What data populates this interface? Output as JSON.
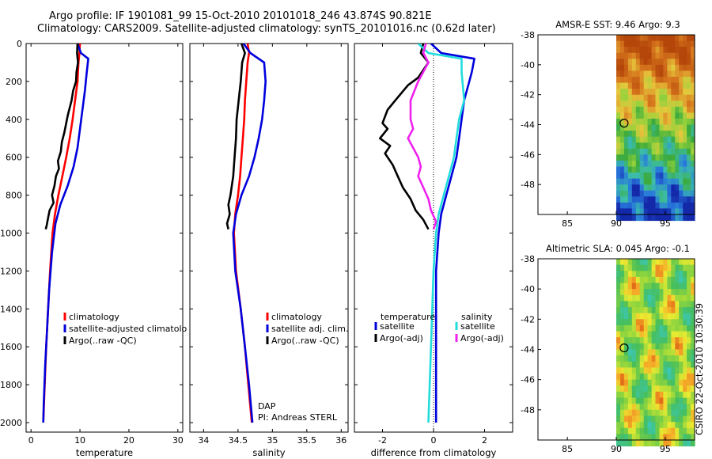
{
  "header": {
    "line1": "Argo profile: IF 1901081_99 15-Oct-2010 20101018_246 43.874S 90.821E",
    "line2": "Climatology: CARS2009. Satellite-adjusted climatology: synTS_20101016.nc (0.62d later)"
  },
  "colors": {
    "climatology": "#ff0000",
    "satellite": "#0000dd",
    "argo": "#000000",
    "sat_salinity": "#22dddd",
    "argo_salinity_adj": "#ee22ee"
  },
  "chart_data": [
    {
      "type": "line",
      "xlabel": "temperature",
      "xlim": [
        -1,
        31
      ],
      "ylim": [
        2050,
        0
      ],
      "xticks": [
        0,
        10,
        20,
        30
      ],
      "yticks": [
        0,
        200,
        400,
        600,
        800,
        1000,
        1200,
        1400,
        1600,
        1800,
        2000
      ],
      "legend": [
        "climatology",
        "satellite-adjusted climatology",
        "Argo(..raw -QC)"
      ],
      "series": [
        {
          "name": "climatology",
          "color": "#ff0000",
          "points": [
            [
              10,
              0
            ],
            [
              9.9,
              50
            ],
            [
              9.7,
              100
            ],
            [
              9.5,
              200
            ],
            [
              9,
              300
            ],
            [
              8.5,
              400
            ],
            [
              7.9,
              500
            ],
            [
              7.2,
              600
            ],
            [
              6.4,
              700
            ],
            [
              5.6,
              800
            ],
            [
              4.9,
              900
            ],
            [
              4.4,
              1000
            ],
            [
              3.9,
              1200
            ],
            [
              3.5,
              1400
            ],
            [
              3.1,
              1600
            ],
            [
              2.8,
              1800
            ],
            [
              2.5,
              2000
            ]
          ]
        },
        {
          "name": "satellite-adjusted climatology",
          "color": "#0000dd",
          "points": [
            [
              9.5,
              0
            ],
            [
              10.2,
              50
            ],
            [
              11.7,
              80
            ],
            [
              11.4,
              150
            ],
            [
              11,
              250
            ],
            [
              10.5,
              350
            ],
            [
              10,
              450
            ],
            [
              9.5,
              550
            ],
            [
              8.7,
              650
            ],
            [
              7.5,
              750
            ],
            [
              6,
              850
            ],
            [
              5,
              950
            ],
            [
              4.3,
              1100
            ],
            [
              3.7,
              1300
            ],
            [
              3.3,
              1500
            ],
            [
              2.9,
              1700
            ],
            [
              2.6,
              1900
            ],
            [
              2.5,
              2000
            ]
          ]
        },
        {
          "name": "Argo(..raw -QC)",
          "color": "#000000",
          "points": [
            [
              9.5,
              0
            ],
            [
              9.4,
              50
            ],
            [
              9.6,
              100
            ],
            [
              9.3,
              150
            ],
            [
              9.2,
              200
            ],
            [
              8.6,
              250
            ],
            [
              8.3,
              300
            ],
            [
              7.5,
              380
            ],
            [
              7.2,
              420
            ],
            [
              6.8,
              470
            ],
            [
              6.3,
              520
            ],
            [
              6.1,
              570
            ],
            [
              5.5,
              620
            ],
            [
              5.7,
              660
            ],
            [
              5.1,
              700
            ],
            [
              4.8,
              750
            ],
            [
              4.3,
              800
            ],
            [
              4.6,
              840
            ],
            [
              3.8,
              880
            ],
            [
              3.5,
              920
            ],
            [
              3.2,
              960
            ],
            [
              3.0,
              980
            ]
          ]
        }
      ]
    },
    {
      "type": "line",
      "xlabel": "salinity",
      "xlim": [
        33.8,
        36.1
      ],
      "ylim": [
        2050,
        0
      ],
      "xticks": [
        34,
        34.5,
        35,
        35.5,
        36
      ],
      "xticklabels": [
        "34",
        "34.5",
        "35",
        "35.5",
        "36"
      ],
      "legend": [
        "climatology",
        "satellite adj. clim.",
        "Argo(..raw -QC)"
      ],
      "annotation": [
        "DAP",
        "PI: Andreas STERL"
      ],
      "series": [
        {
          "name": "climatology",
          "color": "#ff0000",
          "points": [
            [
              34.64,
              0
            ],
            [
              34.66,
              50
            ],
            [
              34.64,
              100
            ],
            [
              34.62,
              200
            ],
            [
              34.6,
              300
            ],
            [
              34.59,
              400
            ],
            [
              34.57,
              500
            ],
            [
              34.55,
              600
            ],
            [
              34.53,
              700
            ],
            [
              34.5,
              800
            ],
            [
              34.46,
              900
            ],
            [
              34.44,
              1000
            ],
            [
              34.47,
              1200
            ],
            [
              34.54,
              1400
            ],
            [
              34.6,
              1600
            ],
            [
              34.65,
              1800
            ],
            [
              34.7,
              2000
            ]
          ]
        },
        {
          "name": "satellite adj. clim.",
          "color": "#0000dd",
          "points": [
            [
              34.58,
              0
            ],
            [
              34.68,
              50
            ],
            [
              34.88,
              100
            ],
            [
              34.9,
              200
            ],
            [
              34.88,
              300
            ],
            [
              34.85,
              400
            ],
            [
              34.8,
              500
            ],
            [
              34.74,
              600
            ],
            [
              34.66,
              700
            ],
            [
              34.55,
              800
            ],
            [
              34.47,
              900
            ],
            [
              34.43,
              1000
            ],
            [
              34.46,
              1200
            ],
            [
              34.54,
              1400
            ],
            [
              34.6,
              1600
            ],
            [
              34.66,
              1800
            ],
            [
              34.71,
              2000
            ]
          ]
        },
        {
          "name": "Argo(..raw -QC)",
          "color": "#000000",
          "points": [
            [
              34.55,
              0
            ],
            [
              34.6,
              50
            ],
            [
              34.56,
              100
            ],
            [
              34.54,
              200
            ],
            [
              34.51,
              300
            ],
            [
              34.48,
              400
            ],
            [
              34.47,
              500
            ],
            [
              34.45,
              600
            ],
            [
              34.43,
              700
            ],
            [
              34.39,
              800
            ],
            [
              34.36,
              850
            ],
            [
              34.38,
              900
            ],
            [
              34.34,
              950
            ],
            [
              34.36,
              980
            ]
          ]
        }
      ]
    },
    {
      "type": "line",
      "xlabel": "difference from climatology",
      "xlim": [
        -3.1,
        3.1
      ],
      "ylim": [
        2050,
        0
      ],
      "xticks": [
        -2,
        0,
        2
      ],
      "legend_temperature_heading": "temperature",
      "legend_salinity_heading": "salinity",
      "legend": [
        "satellite",
        "Argo(-adj)",
        "satellite",
        "Argo(-adj)"
      ],
      "series": [
        {
          "name": "temperature satellite",
          "color": "#0000dd",
          "points": [
            [
              -0.1,
              0
            ],
            [
              0.3,
              50
            ],
            [
              1.6,
              80
            ],
            [
              1.5,
              150
            ],
            [
              1.4,
              200
            ],
            [
              1.2,
              300
            ],
            [
              1.1,
              400
            ],
            [
              1,
              500
            ],
            [
              0.9,
              600
            ],
            [
              0.7,
              700
            ],
            [
              0.5,
              800
            ],
            [
              0.3,
              900
            ],
            [
              0.2,
              1000
            ],
            [
              0.1,
              1200
            ],
            [
              0.1,
              1600
            ],
            [
              0.1,
              2000
            ]
          ]
        },
        {
          "name": "temperature Argo(-adj)",
          "color": "#000000",
          "points": [
            [
              -0.4,
              0
            ],
            [
              -0.5,
              50
            ],
            [
              -0.2,
              100
            ],
            [
              -0.6,
              180
            ],
            [
              -1,
              220
            ],
            [
              -1.5,
              300
            ],
            [
              -1.8,
              350
            ],
            [
              -2,
              420
            ],
            [
              -1.8,
              450
            ],
            [
              -2.1,
              500
            ],
            [
              -1.7,
              540
            ],
            [
              -1.9,
              580
            ],
            [
              -1.6,
              640
            ],
            [
              -1.4,
              700
            ],
            [
              -1.2,
              760
            ],
            [
              -0.9,
              820
            ],
            [
              -0.7,
              880
            ],
            [
              -0.4,
              930
            ],
            [
              -0.2,
              980
            ]
          ]
        },
        {
          "name": "salinity satellite",
          "color": "#22dddd",
          "points": [
            [
              -0.6,
              0
            ],
            [
              -0.2,
              50
            ],
            [
              1.1,
              80
            ],
            [
              1.1,
              150
            ],
            [
              1.2,
              300
            ],
            [
              1,
              400
            ],
            [
              0.9,
              500
            ],
            [
              0.8,
              600
            ],
            [
              0.6,
              700
            ],
            [
              0.4,
              800
            ],
            [
              0.2,
              900
            ],
            [
              0.1,
              1000
            ],
            [
              0,
              1200
            ],
            [
              -0.1,
              1600
            ],
            [
              -0.2,
              2000
            ]
          ]
        },
        {
          "name": "salinity Argo(-adj)",
          "color": "#ee22ee",
          "points": [
            [
              -0.3,
              0
            ],
            [
              -0.4,
              50
            ],
            [
              -0.2,
              100
            ],
            [
              -0.6,
              200
            ],
            [
              -0.9,
              300
            ],
            [
              -0.9,
              400
            ],
            [
              -0.8,
              450
            ],
            [
              -1.0,
              500
            ],
            [
              -0.8,
              550
            ],
            [
              -0.6,
              600
            ],
            [
              -0.5,
              650
            ],
            [
              -0.6,
              700
            ],
            [
              -0.4,
              760
            ],
            [
              -0.2,
              820
            ],
            [
              -0.1,
              880
            ],
            [
              0.1,
              940
            ],
            [
              0.0,
              980
            ]
          ]
        }
      ]
    },
    {
      "type": "heatmap",
      "title": "AMSR-E SST: 9.46 Argo: 9.3",
      "xlim": [
        82,
        98
      ],
      "ylim": [
        -50,
        -38
      ],
      "xticks": [
        85,
        90,
        95
      ],
      "yticks": [
        -38,
        -40,
        -42,
        -44,
        -46,
        -48
      ],
      "marker": {
        "lon": 90.8,
        "lat": -43.9
      }
    },
    {
      "type": "heatmap",
      "title": "Altimetric SLA: 0.045 Argo: -0.1",
      "xlim": [
        82,
        98
      ],
      "ylim": [
        -50,
        -38
      ],
      "xticks": [
        85,
        90,
        95
      ],
      "yticks": [
        -38,
        -40,
        -42,
        -44,
        -46,
        -48
      ],
      "marker": {
        "lon": 90.8,
        "lat": -43.9
      }
    }
  ],
  "footer": {
    "credit": "CSIRO 22-Oct-2010 10:30:39"
  }
}
